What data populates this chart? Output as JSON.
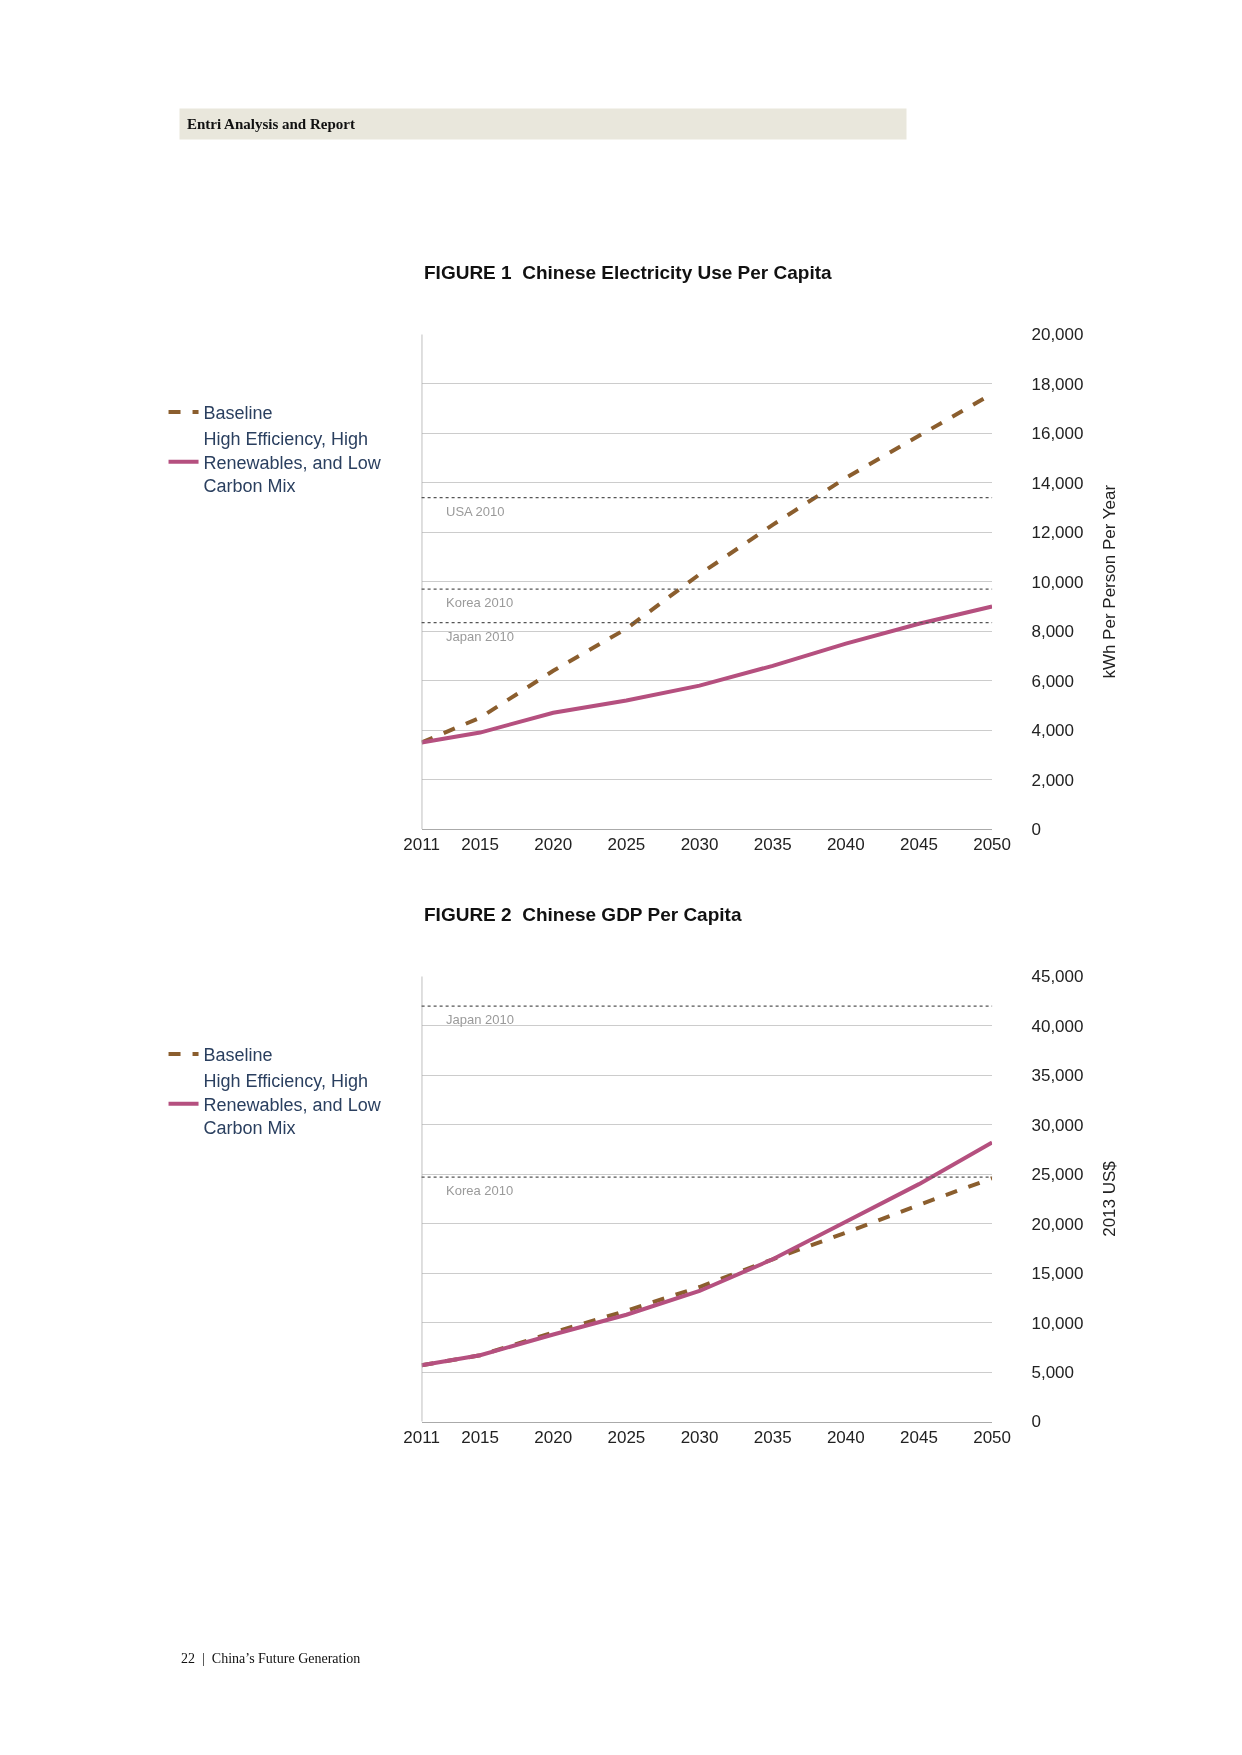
{
  "chart_data": [
    {
      "type": "line",
      "title": "FIGURE 1  Chinese Electricity Use Per Capita",
      "ylabel": "kWh Per Person Per Year",
      "annotations": [
        "Entri Analysis and Report"
      ],
      "x": [
        2011,
        2015,
        2020,
        2025,
        2030,
        2035,
        2040,
        2045,
        2050
      ],
      "series": [
        {
          "name": "Baseline",
          "color": "#8b5e2e",
          "line_style": "dashed",
          "values": [
            3500,
            4500,
            6400,
            8100,
            10300,
            12300,
            14200,
            15900,
            17600
          ]
        },
        {
          "name": "High Efficiency, High Renewables, and Low Carbon Mix",
          "color": "#b5507f",
          "line_style": "solid",
          "values": [
            3500,
            3900,
            4700,
            5200,
            5800,
            6600,
            7500,
            8300,
            9000
          ]
        }
      ],
      "xlim": [
        2011,
        2050
      ],
      "xticks": [
        2011,
        2015,
        2020,
        2025,
        2030,
        2035,
        2040,
        2045,
        2050
      ],
      "ylim": [
        0,
        20000
      ],
      "yticks": [
        {
          "value": 0,
          "label": "0"
        },
        {
          "value": 2000,
          "label": "2,000"
        },
        {
          "value": 4000,
          "label": "4,000"
        },
        {
          "value": 6000,
          "label": "6,000"
        },
        {
          "value": 8000,
          "label": "8,000"
        },
        {
          "value": 10000,
          "label": "10,000"
        },
        {
          "value": 12000,
          "label": "12,000"
        },
        {
          "value": 14000,
          "label": "14,000"
        },
        {
          "value": 16000,
          "label": "16,000"
        },
        {
          "value": 18000,
          "label": "18,000"
        },
        {
          "value": 20000,
          "label": "20,000"
        }
      ],
      "ref_lines": [
        {
          "axis": "y",
          "value": 13400,
          "label": "USA 2010",
          "color": "#555555",
          "line_style": "dotted"
        },
        {
          "axis": "y",
          "value": 9700,
          "label": "Korea 2010",
          "color": "#555555",
          "line_style": "dotted"
        },
        {
          "axis": "y",
          "value": 8350,
          "label": "Japan 2010",
          "color": "#555555",
          "line_style": "dotted"
        }
      ],
      "grid": "y",
      "legend": "left",
      "marker": "none"
    },
    {
      "type": "line",
      "title": "FIGURE 2  Chinese GDP Per Capita",
      "ylabel": "2013 US$",
      "annotations": [
        "22  |  China’s Future Generation"
      ],
      "x": [
        2011,
        2015,
        2020,
        2025,
        2030,
        2035,
        2040,
        2045,
        2050
      ],
      "series": [
        {
          "name": "Baseline",
          "color": "#8b5e2e",
          "line_style": "dashed",
          "values": [
            5700,
            6700,
            9000,
            11200,
            13600,
            16400,
            19100,
            21900,
            24600
          ]
        },
        {
          "name": "High Efficiency, High Renewables, and Low Carbon Mix",
          "color": "#b5507f",
          "line_style": "solid",
          "values": [
            5700,
            6700,
            8800,
            10800,
            13200,
            16400,
            20200,
            24000,
            28200
          ]
        }
      ],
      "xlim": [
        2011,
        2050
      ],
      "xticks": [
        2011,
        2015,
        2020,
        2025,
        2030,
        2035,
        2040,
        2045,
        2050
      ],
      "ylim": [
        0,
        45000
      ],
      "yticks": [
        {
          "value": 0,
          "label": "0"
        },
        {
          "value": 5000,
          "label": "5,000"
        },
        {
          "value": 10000,
          "label": "10,000"
        },
        {
          "value": 15000,
          "label": "15,000"
        },
        {
          "value": 20000,
          "label": "20,000"
        },
        {
          "value": 25000,
          "label": "25,000"
        },
        {
          "value": 30000,
          "label": "30,000"
        },
        {
          "value": 35000,
          "label": "35,000"
        },
        {
          "value": 40000,
          "label": "40,000"
        },
        {
          "value": 45000,
          "label": "45,000"
        }
      ],
      "ref_lines": [
        {
          "axis": "y",
          "value": 42000,
          "label": "Japan 2010",
          "color": "#555555",
          "line_style": "dotted"
        },
        {
          "axis": "y",
          "value": 24700,
          "label": "Korea 2010",
          "color": "#555555",
          "line_style": "dotted"
        }
      ],
      "grid": "y",
      "legend": "left",
      "marker": "none"
    }
  ]
}
